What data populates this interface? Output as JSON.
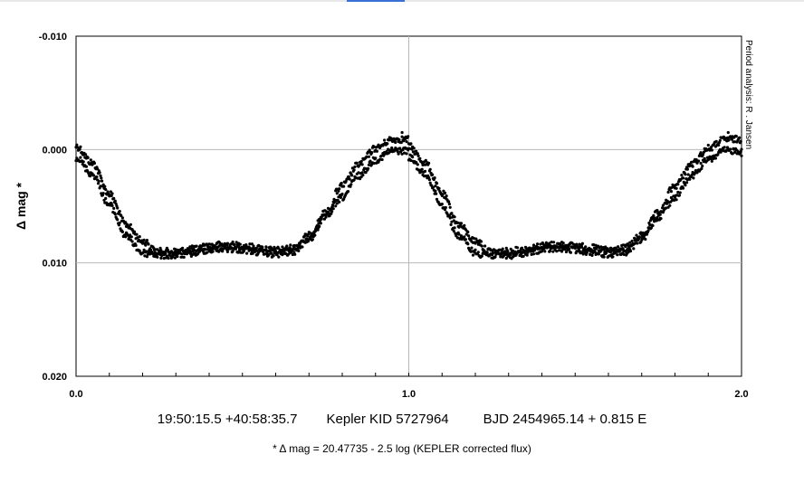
{
  "chart_data": {
    "type": "scatter",
    "ylabel": "Δ mag *",
    "side_label": "Period analysis: R . Jansen",
    "xlim": [
      0.0,
      2.0
    ],
    "ylim": [
      -0.01,
      0.02
    ],
    "y_inverted": true,
    "grid": true,
    "x_ticks": [
      {
        "value": 0.0,
        "label": "0.0"
      },
      {
        "value": 1.0,
        "label": "1.0"
      },
      {
        "value": 2.0,
        "label": "2.0"
      }
    ],
    "y_ticks": [
      {
        "value": -0.01,
        "label": "-0.010"
      },
      {
        "value": 0.0,
        "label": "0.000"
      },
      {
        "value": 0.01,
        "label": "0.010"
      },
      {
        "value": 0.02,
        "label": "0.020"
      }
    ],
    "minor_x_step": 0.1,
    "marker_color": "#000000",
    "phase_curve": [
      {
        "phase": 0.0,
        "mag": 0.0003
      },
      {
        "phase": 0.05,
        "mag": 0.0018
      },
      {
        "phase": 0.1,
        "mag": 0.0045
      },
      {
        "phase": 0.15,
        "mag": 0.0072
      },
      {
        "phase": 0.2,
        "mag": 0.0087
      },
      {
        "phase": 0.25,
        "mag": 0.0092
      },
      {
        "phase": 0.3,
        "mag": 0.0092
      },
      {
        "phase": 0.35,
        "mag": 0.009
      },
      {
        "phase": 0.4,
        "mag": 0.0087
      },
      {
        "phase": 0.45,
        "mag": 0.0086
      },
      {
        "phase": 0.5,
        "mag": 0.0087
      },
      {
        "phase": 0.55,
        "mag": 0.0089
      },
      {
        "phase": 0.6,
        "mag": 0.0091
      },
      {
        "phase": 0.65,
        "mag": 0.0089
      },
      {
        "phase": 0.7,
        "mag": 0.0078
      },
      {
        "phase": 0.75,
        "mag": 0.0058
      },
      {
        "phase": 0.8,
        "mag": 0.0038
      },
      {
        "phase": 0.85,
        "mag": 0.0019
      },
      {
        "phase": 0.9,
        "mag": 0.0005
      },
      {
        "phase": 0.95,
        "mag": -0.0003
      },
      {
        "phase": 1.0,
        "mag": -0.0003
      }
    ],
    "upper_branch_offset": -0.0006,
    "lower_branch_offset": 0.0004,
    "scatter_amplitude": 0.0003
  },
  "caption": {
    "coords": "19:50:15.5 +40:58:35.7",
    "target": "Kepler KID 5727964",
    "ephemeris": "BJD 2454965.14 + 0.815 E",
    "footnote": "* Δ mag = 20.47735 - 2.5 log (KEPLER corrected flux)"
  }
}
